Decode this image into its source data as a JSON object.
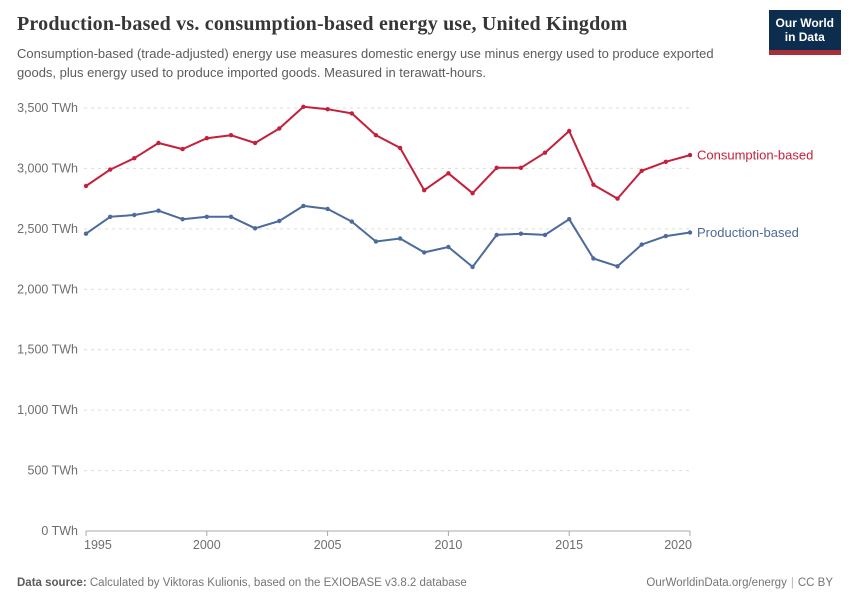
{
  "header": {
    "title": "Production-based vs. consumption-based energy use, United Kingdom",
    "subtitle": "Consumption-based (trade-adjusted) energy use measures domestic energy use minus energy used to produce exported goods, plus energy used to produce imported goods. Measured in terawatt-hours.",
    "logo": {
      "line1": "Our World",
      "line2": "in Data",
      "bg": "#0C2D4E",
      "accent": "#A62F39"
    }
  },
  "chart_data": {
    "type": "line",
    "title": "Production-based vs. consumption-based energy use, United Kingdom",
    "unit": "TWh",
    "xlim": [
      1995,
      2020
    ],
    "ylim": [
      0,
      3500
    ],
    "grid": "horizontal-dashed",
    "legend_position": "end-of-line-labels",
    "x": [
      1995,
      1996,
      1997,
      1998,
      1999,
      2000,
      2001,
      2002,
      2003,
      2004,
      2005,
      2006,
      2007,
      2008,
      2009,
      2010,
      2011,
      2012,
      2013,
      2014,
      2015,
      2016,
      2017,
      2018,
      2019,
      2020
    ],
    "series": [
      {
        "name": "Consumption-based",
        "color": "#C4203B",
        "values": [
          2855,
          2990,
          3085,
          3210,
          3160,
          3250,
          3275,
          3210,
          3330,
          3510,
          3490,
          3455,
          3275,
          3170,
          2820,
          2960,
          2795,
          3005,
          3005,
          3130,
          3310,
          2865,
          2750,
          2980,
          3055,
          3110
        ]
      },
      {
        "name": "Production-based",
        "color": "#4C6A9C",
        "values": [
          2460,
          2600,
          2615,
          2650,
          2580,
          2600,
          2600,
          2505,
          2565,
          2690,
          2665,
          2560,
          2395,
          2420,
          2305,
          2350,
          2185,
          2450,
          2460,
          2450,
          2580,
          2255,
          2190,
          2370,
          2440,
          2470
        ]
      }
    ],
    "y_ticks": [
      {
        "value": 0,
        "label": "0 TWh"
      },
      {
        "value": 500,
        "label": "500 TWh"
      },
      {
        "value": 1000,
        "label": "1,000 TWh"
      },
      {
        "value": 1500,
        "label": "1,500 TWh"
      },
      {
        "value": 2000,
        "label": "2,000 TWh"
      },
      {
        "value": 2500,
        "label": "2,500 TWh"
      },
      {
        "value": 3000,
        "label": "3,000 TWh"
      },
      {
        "value": 3500,
        "label": "3,500 TWh"
      }
    ],
    "x_ticks": [
      1995,
      2000,
      2005,
      2010,
      2015,
      2020
    ]
  },
  "footer": {
    "source_label": "Data source:",
    "source_text": " Calculated by Viktoras Kulionis, based on the EXIOBASE v3.8.2 database",
    "site": "OurWorldinData.org/energy",
    "separator": "|",
    "license": "CC BY"
  }
}
